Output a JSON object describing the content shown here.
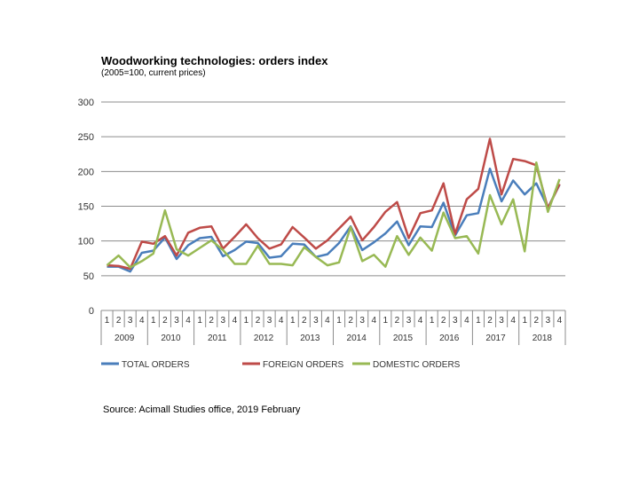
{
  "chart_data": {
    "type": "line",
    "title": "Woodworking technologies: orders index",
    "subtitle": "(2005=100, current prices)",
    "ylim": [
      0,
      300
    ],
    "yticks": [
      0,
      50,
      100,
      150,
      200,
      250,
      300
    ],
    "grid": true,
    "legend_position": "bottom",
    "quarter_labels": [
      "1",
      "2",
      "3",
      "4"
    ],
    "years": [
      "2009",
      "2010",
      "2011",
      "2012",
      "2013",
      "2014",
      "2015",
      "2016",
      "2017",
      "2018"
    ],
    "series": [
      {
        "name": "TOTAL ORDERS",
        "color": "#4a7ebb",
        "values": [
          63,
          63,
          56,
          83,
          86,
          105,
          74,
          94,
          104,
          106,
          78,
          87,
          99,
          97,
          76,
          78,
          96,
          95,
          77,
          81,
          97,
          121,
          87,
          98,
          111,
          128,
          94,
          121,
          120,
          155,
          108,
          137,
          140,
          204,
          157,
          187,
          167,
          183,
          148,
          181
        ]
      },
      {
        "name": "FOREIGN ORDERS",
        "color": "#be4b48",
        "values": [
          65,
          64,
          60,
          99,
          96,
          107,
          79,
          112,
          119,
          121,
          89,
          106,
          124,
          104,
          89,
          95,
          120,
          105,
          89,
          101,
          118,
          135,
          101,
          120,
          142,
          156,
          104,
          140,
          144,
          183,
          110,
          160,
          175,
          247,
          167,
          218,
          215,
          209,
          147,
          182
        ]
      },
      {
        "name": "DOMESTIC ORDERS",
        "color": "#98b954",
        "values": [
          65,
          79,
          62,
          71,
          82,
          144,
          88,
          79,
          90,
          101,
          87,
          67,
          67,
          93,
          67,
          67,
          65,
          91,
          77,
          65,
          69,
          120,
          71,
          80,
          63,
          107,
          80,
          105,
          86,
          141,
          104,
          107,
          82,
          166,
          124,
          160,
          85,
          213,
          142,
          189
        ]
      }
    ]
  },
  "source": "Source: Acimall Studies office, 2019 February"
}
